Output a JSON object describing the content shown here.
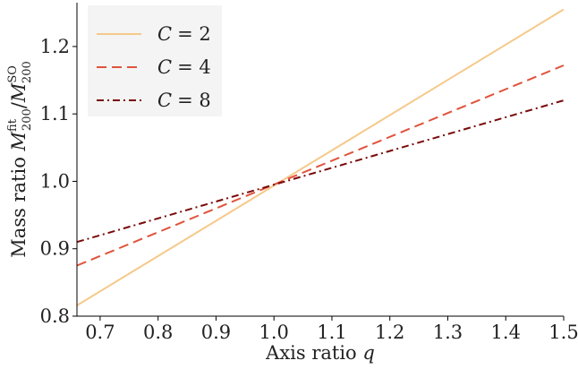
{
  "chart_data": {
    "type": "line",
    "x": [
      0.66,
      1.5
    ],
    "series": [
      {
        "name": "C = 2",
        "name_parts": [
          "C",
          "= 2"
        ],
        "values": [
          0.816,
          1.255
        ],
        "color": "#F5C98A",
        "dash": "solid"
      },
      {
        "name": "C = 4",
        "name_parts": [
          "C",
          "= 4"
        ],
        "values": [
          0.875,
          1.172
        ],
        "color": "#E0533B",
        "dash": "dashed"
      },
      {
        "name": "C = 8",
        "name_parts": [
          "C",
          "= 8"
        ],
        "values": [
          0.91,
          1.12
        ],
        "color": "#7A0A0A",
        "dash": "dashdot"
      }
    ],
    "x_ticks": [
      0.7,
      0.8,
      0.9,
      1.0,
      1.1,
      1.2,
      1.3,
      1.4,
      1.5
    ],
    "x_tick_labels": [
      "0.7",
      "0.8",
      "0.9",
      "1.0",
      "1.1",
      "1.2",
      "1.3",
      "1.4",
      "1.5"
    ],
    "y_ticks": [
      0.8,
      0.9,
      1.0,
      1.1,
      1.2
    ],
    "y_tick_labels": [
      "0.8",
      "0.9",
      "1.0",
      "1.1",
      "1.2"
    ],
    "xlim": [
      0.66,
      1.5
    ],
    "ylim": [
      0.8,
      1.265
    ],
    "xlabel": "Axis ratio q",
    "xlabel_parts": {
      "text": "Axis ratio ",
      "var": "q"
    },
    "ylabel": "Mass ratio M_200^fit / M_200^SO",
    "ylabel_parts": {
      "text": "Mass ratio ",
      "var": "M",
      "sub": "200",
      "sup1": "fit",
      "sep": "/",
      "sup2": "SO"
    },
    "legend_position": "top-left",
    "grid": false
  }
}
